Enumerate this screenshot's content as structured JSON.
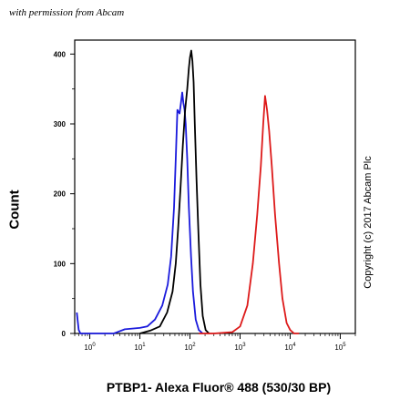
{
  "watermark": "with permission from Abcam",
  "copyright": "Copyright (c) 2017 Abcam Plc",
  "chart_data": {
    "type": "line",
    "title": "",
    "xlabel": "PTBP1- Alexa Fluor® 488 (530/30 BP)",
    "ylabel": "Count",
    "xscale": "log",
    "xlim": [
      0.5,
      200000
    ],
    "ylim": [
      0,
      420
    ],
    "x_ticks": [
      1,
      10,
      100,
      1000,
      10000,
      100000
    ],
    "x_tick_labels": [
      "10^0",
      "10^1",
      "10^2",
      "10^3",
      "10^4",
      "10^5"
    ],
    "y_ticks": [
      0,
      100,
      200,
      300,
      400
    ],
    "y_tick_labels": [
      "0",
      "100",
      "200",
      "300",
      "400"
    ],
    "grid": false,
    "series": [
      {
        "color": "#1a1adc",
        "points": [
          [
            0.55,
            30
          ],
          [
            0.6,
            5
          ],
          [
            0.65,
            0
          ],
          [
            3,
            0
          ],
          [
            5,
            6
          ],
          [
            10,
            8
          ],
          [
            14,
            10
          ],
          [
            20,
            20
          ],
          [
            28,
            40
          ],
          [
            36,
            70
          ],
          [
            42,
            110
          ],
          [
            48,
            180
          ],
          [
            52,
            250
          ],
          [
            56,
            320
          ],
          [
            62,
            315
          ],
          [
            66,
            330
          ],
          [
            70,
            345
          ],
          [
            74,
            330
          ],
          [
            78,
            320
          ],
          [
            82,
            300
          ],
          [
            88,
            250
          ],
          [
            95,
            180
          ],
          [
            105,
            110
          ],
          [
            115,
            60
          ],
          [
            130,
            20
          ],
          [
            150,
            5
          ],
          [
            180,
            0
          ]
        ]
      },
      {
        "color": "#000000",
        "points": [
          [
            10,
            0
          ],
          [
            16,
            4
          ],
          [
            25,
            10
          ],
          [
            35,
            30
          ],
          [
            45,
            60
          ],
          [
            52,
            100
          ],
          [
            58,
            150
          ],
          [
            65,
            210
          ],
          [
            72,
            270
          ],
          [
            80,
            320
          ],
          [
            88,
            350
          ],
          [
            95,
            380
          ],
          [
            100,
            395
          ],
          [
            106,
            405
          ],
          [
            112,
            390
          ],
          [
            118,
            360
          ],
          [
            125,
            300
          ],
          [
            135,
            220
          ],
          [
            148,
            140
          ],
          [
            162,
            70
          ],
          [
            180,
            25
          ],
          [
            205,
            5
          ],
          [
            240,
            0
          ]
        ]
      },
      {
        "color": "#dd1a1a",
        "points": [
          [
            150,
            0
          ],
          [
            300,
            0
          ],
          [
            700,
            2
          ],
          [
            1000,
            10
          ],
          [
            1400,
            40
          ],
          [
            1800,
            100
          ],
          [
            2200,
            170
          ],
          [
            2600,
            240
          ],
          [
            2900,
            300
          ],
          [
            3150,
            340
          ],
          [
            3450,
            320
          ],
          [
            3800,
            290
          ],
          [
            4300,
            240
          ],
          [
            5000,
            170
          ],
          [
            6000,
            100
          ],
          [
            7000,
            50
          ],
          [
            8500,
            15
          ],
          [
            10000,
            5
          ],
          [
            12000,
            0
          ],
          [
            15000,
            0
          ]
        ]
      }
    ]
  }
}
